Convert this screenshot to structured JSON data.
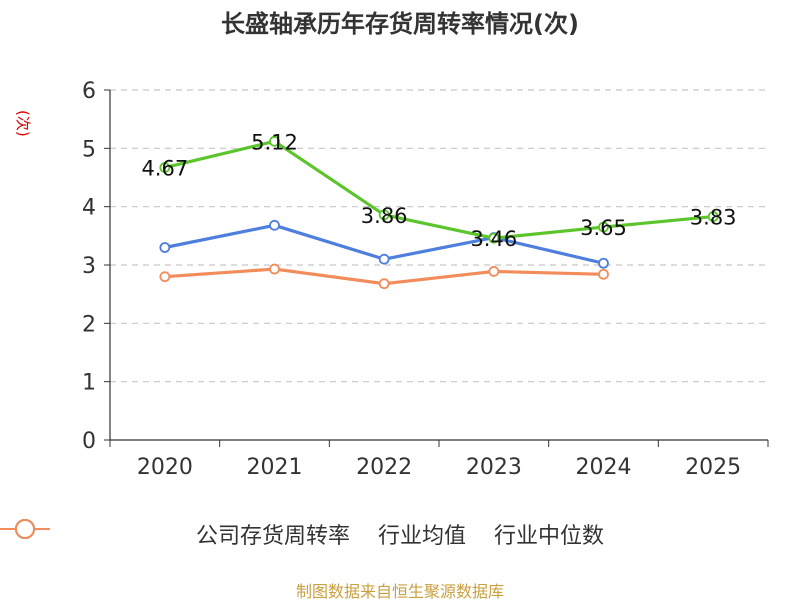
{
  "chart_data": {
    "type": "line",
    "title": "长盛轴承历年存货周转率情况(次)",
    "ylabel": "(次)",
    "categories": [
      "2020",
      "2021",
      "2022",
      "2023",
      "2024",
      "2025"
    ],
    "ylim": [
      0,
      6
    ],
    "yticks": [
      0,
      1,
      2,
      3,
      4,
      5,
      6
    ],
    "grid": true,
    "legend_position": "bottom",
    "series": [
      {
        "name": "公司存货周转率",
        "color": "#5cc52c",
        "values": [
          4.67,
          5.12,
          3.86,
          3.46,
          3.65,
          3.83
        ],
        "labels": [
          "4.67",
          "5.12",
          "3.86",
          "3.46",
          "3.65",
          "3.83"
        ]
      },
      {
        "name": "行业均值",
        "color": "#4f7fdc",
        "values": [
          3.3,
          3.68,
          3.1,
          3.47,
          3.03,
          null
        ]
      },
      {
        "name": "行业中位数",
        "color": "#f28c5a",
        "values": [
          2.8,
          2.93,
          2.68,
          2.89,
          2.84,
          null
        ]
      }
    ]
  },
  "source": "制图数据来自恒生聚源数据库"
}
